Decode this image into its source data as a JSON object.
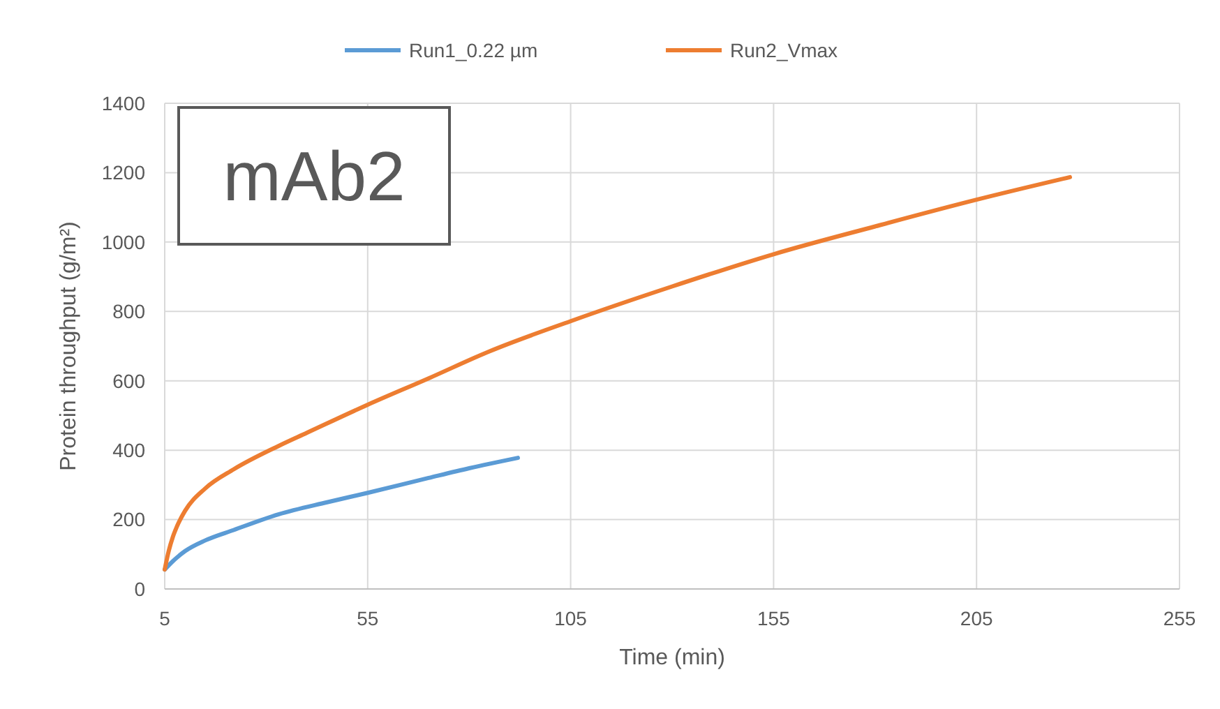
{
  "chart_data": {
    "type": "line",
    "xlabel": "Time (min)",
    "ylabel": "Protein throughput (g/m²)",
    "annotations": [
      "mAb2"
    ],
    "xlim": [
      5,
      255
    ],
    "xticks": [
      5,
      55,
      105,
      155,
      205,
      255
    ],
    "ylim": [
      0,
      1400
    ],
    "yticks": [
      0,
      200,
      400,
      600,
      800,
      1000,
      1200,
      1400
    ],
    "grid": true,
    "legend": "top",
    "line_style": "solid",
    "series": [
      {
        "name": "Run1_0.22 µm",
        "color": "#5b9bd5",
        "x": [
          5,
          7,
          10,
          15,
          22,
          33,
          45,
          55,
          70,
          80,
          92
        ],
        "values": [
          56,
          80,
          109,
          140,
          170,
          215,
          250,
          277,
          320,
          348,
          378
        ]
      },
      {
        "name": "Run2_Vmax",
        "color": "#ed7d31",
        "x": [
          5,
          6,
          7,
          8,
          10,
          15,
          22,
          33,
          40,
          55,
          70,
          85,
          105,
          130,
          155,
          180,
          205,
          228
        ],
        "values": [
          56,
          110,
          150,
          180,
          225,
          290,
          345,
          412,
          450,
          531,
          607,
          685,
          772,
          872,
          965,
          1045,
          1122,
          1187
        ]
      }
    ]
  }
}
